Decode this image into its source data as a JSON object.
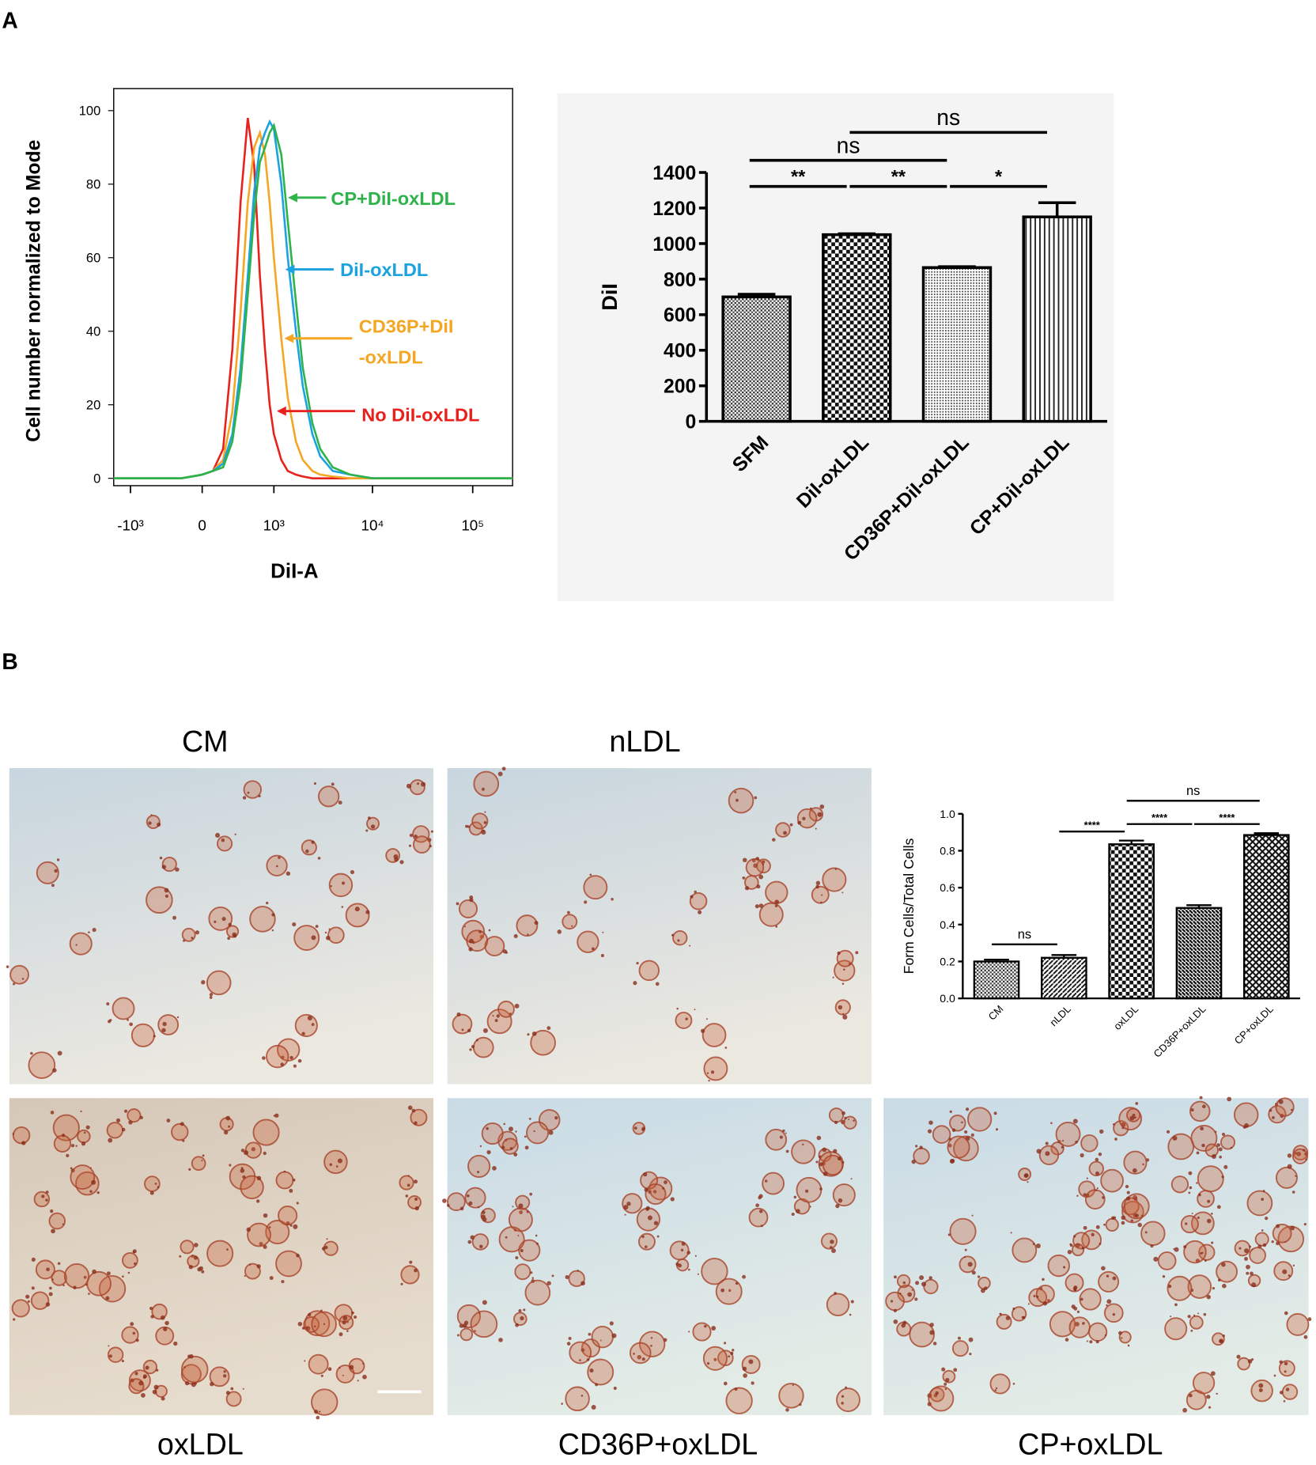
{
  "panel_labels": [
    "A",
    "B"
  ],
  "micrographs": [
    "CM",
    "nLDL",
    "oxLDL",
    "CD36P+oxLDL",
    "CP+oxLDL"
  ],
  "chart_data": [
    {
      "type": "line",
      "x_label": "DiI-A",
      "y_label": "Cell number normalized to Mode",
      "xscale": "biexponential",
      "x": [
        -1500,
        -500,
        -200,
        0,
        100,
        200,
        300,
        400,
        500,
        600,
        700,
        800,
        900,
        1000,
        1200,
        1400,
        1700,
        2000,
        2500,
        3000,
        4000,
        6000,
        10000,
        50000,
        250000
      ],
      "series": [
        {
          "name": "CP+DiI-oxLDL",
          "color": "#2db34a",
          "values": [
            0,
            0,
            0,
            1,
            2,
            3,
            10,
            26,
            50,
            72,
            86,
            90,
            94,
            96,
            88,
            70,
            48,
            30,
            15,
            8,
            3,
            1,
            0,
            0,
            0
          ]
        },
        {
          "name": "DiI-oxLDL",
          "color": "#1aa3e0",
          "values": [
            0,
            0,
            0,
            1,
            2,
            4,
            12,
            30,
            55,
            78,
            90,
            94,
            97,
            95,
            80,
            60,
            40,
            25,
            12,
            6,
            2,
            1,
            0,
            0,
            0
          ]
        },
        {
          "name": "CD36P+DiI-oxLDL",
          "color": "#f5a623",
          "values": [
            0,
            0,
            0,
            1,
            2,
            5,
            18,
            45,
            75,
            90,
            94,
            88,
            75,
            60,
            38,
            22,
            10,
            5,
            2,
            1,
            0.5,
            0,
            0,
            0,
            0
          ]
        },
        {
          "name": "No DiI-oxLDL",
          "color": "#e8211c",
          "values": [
            0,
            0,
            0,
            1,
            2,
            8,
            35,
            75,
            98,
            85,
            55,
            35,
            20,
            12,
            5,
            2,
            1,
            0.5,
            0,
            0,
            0,
            0,
            0,
            0,
            0
          ]
        }
      ],
      "xlim": [
        -1500,
        250000
      ],
      "xticks": [
        {
          "value": -1000,
          "label": "-10³"
        },
        0,
        {
          "value": 1000,
          "label": "10³"
        },
        {
          "value": 10000,
          "label": "10⁴"
        },
        {
          "value": 100000,
          "label": "10⁵"
        }
      ],
      "ylim": [
        -2,
        106
      ],
      "yticks": [
        0,
        20,
        40,
        60,
        80,
        100
      ]
    },
    {
      "type": "bar",
      "y_label": "DiI",
      "categories": [
        "SFM",
        "DiI-oxLDL",
        "CD36P+DiI-oxLDL",
        "CP+DiI-oxLDL"
      ],
      "values": [
        700,
        1050,
        865,
        1150
      ],
      "errors": [
        15,
        5,
        5,
        80
      ],
      "color": "#000000",
      "ylim": [
        0,
        1400
      ],
      "yticks": [
        0,
        200,
        400,
        600,
        800,
        1000,
        1200,
        1400
      ],
      "comparisons": [
        {
          "between": [
            "SFM",
            "DiI-oxLDL"
          ],
          "label": "**"
        },
        {
          "between": [
            "DiI-oxLDL",
            "CD36P+DiI-oxLDL"
          ],
          "label": "**"
        },
        {
          "between": [
            "CD36P+DiI-oxLDL",
            "CP+DiI-oxLDL"
          ],
          "label": "*"
        },
        {
          "between": [
            "SFM",
            "CD36P+DiI-oxLDL"
          ],
          "label": "ns"
        },
        {
          "between": [
            "DiI-oxLDL",
            "CP+DiI-oxLDL"
          ],
          "label": "ns"
        }
      ]
    },
    {
      "type": "bar",
      "y_label": "Form Cells/Total Cells",
      "categories": [
        "CM",
        "nLDL",
        "oxLDL",
        "CD36P+oxLDL",
        "CP+oxLDL"
      ],
      "values": [
        0.2,
        0.22,
        0.835,
        0.49,
        0.885
      ],
      "errors": [
        0.01,
        0.015,
        0.02,
        0.015,
        0.01
      ],
      "color": "#000000",
      "ylim": [
        0,
        1
      ],
      "yticks": [
        {
          "value": 0,
          "label": "0.0"
        },
        0.2,
        0.4,
        0.6,
        0.8,
        {
          "value": 1,
          "label": "1.0"
        }
      ],
      "comparisons": [
        {
          "between": [
            "CM",
            "nLDL"
          ],
          "label": "ns"
        },
        {
          "between": [
            "nLDL",
            "oxLDL"
          ],
          "label": "****"
        },
        {
          "between": [
            "oxLDL",
            "CD36P+oxLDL"
          ],
          "label": "****"
        },
        {
          "between": [
            "CD36P+oxLDL",
            "CP+oxLDL"
          ],
          "label": "****"
        },
        {
          "between": [
            "oxLDL",
            "CP+oxLDL"
          ],
          "label": "ns"
        }
      ]
    }
  ]
}
